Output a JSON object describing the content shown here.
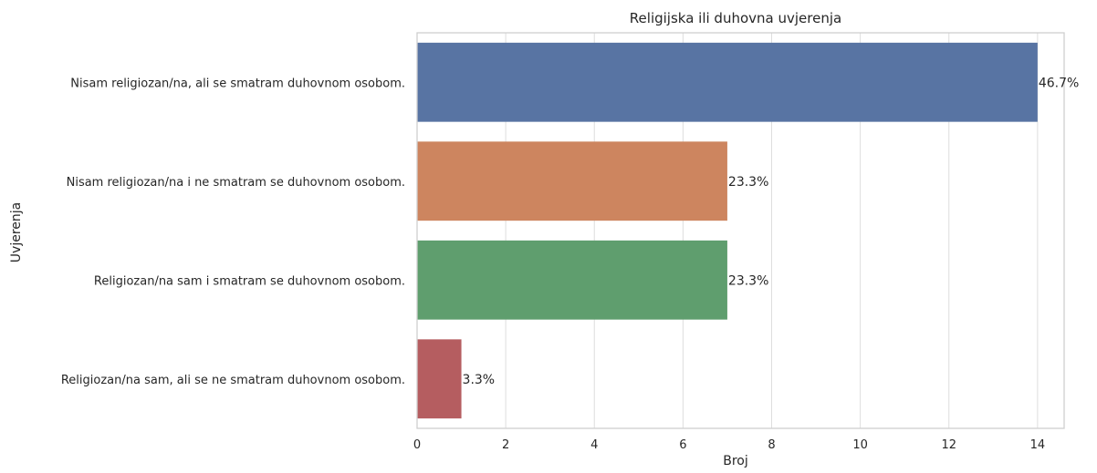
{
  "chart_data": {
    "type": "bar",
    "orientation": "horizontal",
    "title": "Religijska ili duhovna uvjerenja",
    "xlabel": "Broj",
    "ylabel": "Uvjerenja",
    "xlim": [
      0,
      14.6
    ],
    "xticks": [
      0,
      2,
      4,
      6,
      8,
      10,
      12,
      14
    ],
    "grid": true,
    "categories": [
      "Nisam religiozan/na, ali se smatram duhovnom osobom.",
      "Nisam religiozan/na i ne smatram se duhovnom osobom.",
      "Religiozan/na sam i smatram se duhovnom osobom.",
      "Religiozan/na sam, ali se ne smatram duhovnom osobom."
    ],
    "values": [
      14,
      7,
      7,
      1
    ],
    "data_labels": [
      "46.7%",
      "23.3%",
      "23.3%",
      "3.3%"
    ],
    "colors": [
      "#5874a3",
      "#cd855f",
      "#5f9e6e",
      "#b55d60"
    ]
  }
}
